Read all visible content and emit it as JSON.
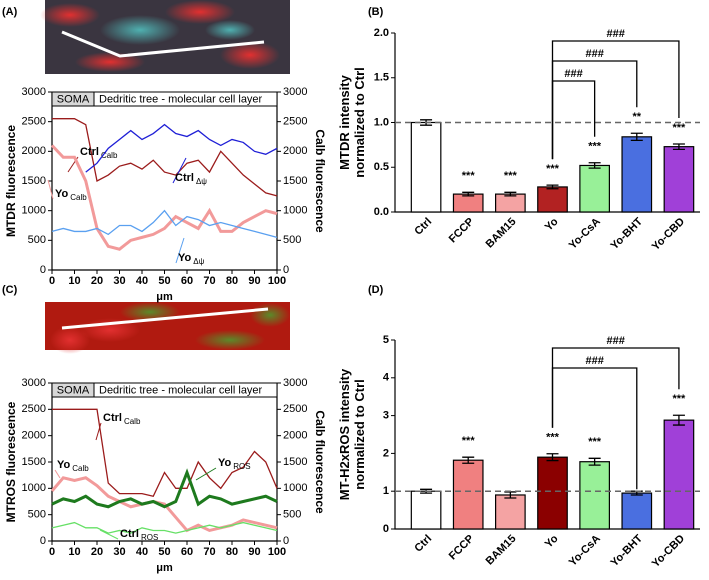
{
  "chart_data": [
    {
      "type": "line",
      "label": "(A)",
      "ylabel": "MTDR fluorescence",
      "y2label": "Calb fluorescence",
      "xlabel": "μm",
      "header": [
        "SOMA",
        "Dedritic tree - molecular cell layer"
      ],
      "x": [
        0,
        5,
        10,
        15,
        20,
        25,
        30,
        35,
        40,
        45,
        50,
        55,
        60,
        65,
        70,
        75,
        80,
        85,
        90,
        95,
        100
      ],
      "xlim": [
        0,
        100
      ],
      "xticks": [
        0,
        10,
        20,
        30,
        40,
        50,
        60,
        70,
        80,
        90,
        100
      ],
      "ylim": [
        0,
        3000
      ],
      "yticks": [
        0,
        500,
        1000,
        1500,
        2000,
        2500,
        3000
      ],
      "y2lim": [
        0,
        3000
      ],
      "y2ticks": [
        0,
        500,
        1000,
        1500,
        2000,
        2500,
        3000
      ],
      "series": [
        {
          "name": "Ctrl",
          "subscript": "Calb",
          "color": "#9b1c1c",
          "axis": "y2",
          "values": [
            2550,
            2550,
            2550,
            2450,
            1500,
            1600,
            1750,
            1800,
            1700,
            1850,
            1650,
            1600,
            1800,
            1850,
            1650,
            2000,
            1800,
            1600,
            1450,
            1300,
            1250
          ]
        },
        {
          "name": "Yo",
          "subscript": "Calb",
          "color": "#f29a9a",
          "axis": "y2",
          "values": [
            2100,
            1900,
            1900,
            1500,
            700,
            400,
            350,
            500,
            550,
            600,
            700,
            900,
            800,
            700,
            1000,
            650,
            650,
            800,
            900,
            1000,
            950
          ]
        },
        {
          "name": "Ctrl",
          "subscript": "Δψ",
          "color": "#1f1fd6",
          "values": [
            null,
            null,
            null,
            1650,
            1800,
            2050,
            2200,
            2350,
            2200,
            2300,
            2450,
            2300,
            2250,
            2350,
            2200,
            2100,
            2200,
            2150,
            2000,
            1950,
            2050
          ]
        },
        {
          "name": "Yo",
          "subscript": "Δψ",
          "color": "#5aa0f0",
          "values": [
            650,
            700,
            650,
            650,
            700,
            600,
            750,
            750,
            650,
            800,
            1000,
            750,
            900,
            850,
            750,
            800,
            750,
            700,
            650,
            600,
            550
          ]
        }
      ]
    },
    {
      "type": "bar",
      "label": "(B)",
      "ylabel": "MTDR intensity\nnormalized to Ctrl",
      "categories": [
        "Ctrl",
        "FCCP",
        "BAM15",
        "Yo",
        "Yo-CsA",
        "Yo-BHT",
        "Yo-CBD"
      ],
      "values": [
        1.0,
        0.2,
        0.2,
        0.28,
        0.52,
        0.84,
        0.73
      ],
      "errors": [
        0.03,
        0.02,
        0.02,
        0.02,
        0.03,
        0.04,
        0.03
      ],
      "colors": [
        "#ffffff",
        "#f08080",
        "#f4a3a3",
        "#b22222",
        "#98f098",
        "#4a6fe0",
        "#a040d8"
      ],
      "stars": [
        null,
        "***",
        "***",
        "***",
        "***",
        "**",
        "***"
      ],
      "comparisons": [
        {
          "from": "Yo",
          "to": "Yo-CsA",
          "label": "###"
        },
        {
          "from": "Yo",
          "to": "Yo-BHT",
          "label": "###"
        },
        {
          "from": "Yo",
          "to": "Yo-CBD",
          "label": "###"
        }
      ],
      "reference_line": 1,
      "ylim": [
        0,
        2
      ],
      "yticks": [
        {
          "value": 0,
          "label": "0.0"
        },
        {
          "value": 0.5,
          "label": "0.5"
        },
        {
          "value": 1,
          "label": "1.0"
        },
        {
          "value": 1.5,
          "label": "1.5"
        },
        {
          "value": 2,
          "label": "2.0"
        }
      ]
    },
    {
      "type": "line",
      "label": "(C)",
      "ylabel": "MTROS fluorescence",
      "y2label": "Calb fluorescence",
      "xlabel": "μm",
      "header": [
        "SOMA",
        "Dedritic tree - molecular cell layer"
      ],
      "x": [
        0,
        5,
        10,
        15,
        20,
        25,
        30,
        35,
        40,
        45,
        50,
        55,
        60,
        65,
        70,
        75,
        80,
        85,
        90,
        95,
        100
      ],
      "xlim": [
        0,
        100
      ],
      "xticks": [
        0,
        10,
        20,
        30,
        40,
        50,
        60,
        70,
        80,
        90,
        100
      ],
      "ylim": [
        0,
        3000
      ],
      "yticks": [
        0,
        500,
        1000,
        1500,
        2000,
        2500,
        3000
      ],
      "y2lim": [
        0,
        3000
      ],
      "y2ticks": [
        0,
        500,
        1000,
        1500,
        2000,
        2500,
        3000
      ],
      "series": [
        {
          "name": "Ctrl",
          "subscript": "Calb",
          "color": "#9b1c1c",
          "axis": "y2",
          "values": [
            2500,
            2500,
            2500,
            2500,
            2500,
            1100,
            900,
            900,
            900,
            850,
            1300,
            1000,
            1000,
            1500,
            1200,
            1000,
            1300,
            1400,
            1700,
            1500,
            1000
          ]
        },
        {
          "name": "Yo",
          "subscript": "Calb",
          "color": "#f29a9a",
          "axis": "y2",
          "values": [
            950,
            1200,
            1150,
            1200,
            1050,
            850,
            750,
            650,
            700,
            750,
            700,
            450,
            200,
            300,
            200,
            250,
            300,
            400,
            350,
            300,
            250
          ]
        },
        {
          "name": "Yo",
          "subscript": "ROS",
          "color": "#1e7a1e",
          "values": [
            700,
            800,
            750,
            850,
            700,
            650,
            750,
            800,
            700,
            750,
            650,
            750,
            1300,
            700,
            850,
            800,
            700,
            750,
            800,
            850,
            750
          ]
        },
        {
          "name": "Ctrl",
          "subscript": "ROS",
          "color": "#66e066",
          "values": [
            250,
            300,
            350,
            250,
            250,
            150,
            200,
            150,
            250,
            200,
            200,
            150,
            200,
            250,
            300,
            250,
            300,
            350,
            300,
            250,
            200
          ]
        }
      ]
    },
    {
      "type": "bar",
      "label": "(D)",
      "ylabel": "MT-H2xROS intensity\nnormalized to Ctrl",
      "categories": [
        "Ctrl",
        "FCCP",
        "BAM15",
        "Yo",
        "Yo-CsA",
        "Yo-BHT",
        "Yo-CBD"
      ],
      "values": [
        1.0,
        1.82,
        0.9,
        1.9,
        1.78,
        0.95,
        2.88
      ],
      "errors": [
        0.05,
        0.08,
        0.08,
        0.09,
        0.09,
        0.05,
        0.13
      ],
      "colors": [
        "#ffffff",
        "#f08080",
        "#f4a3a3",
        "#8b0000",
        "#98f098",
        "#4a6fe0",
        "#a040d8"
      ],
      "stars": [
        null,
        "***",
        null,
        "***",
        "***",
        null,
        "***"
      ],
      "comparisons": [
        {
          "from": "Yo",
          "to": "Yo-BHT",
          "label": "###"
        },
        {
          "from": "Yo",
          "to": "Yo-CBD",
          "label": "###"
        }
      ],
      "reference_line": 1,
      "ylim": [
        0,
        5
      ],
      "yticks": [
        0,
        1,
        2,
        3,
        4,
        5
      ]
    }
  ]
}
